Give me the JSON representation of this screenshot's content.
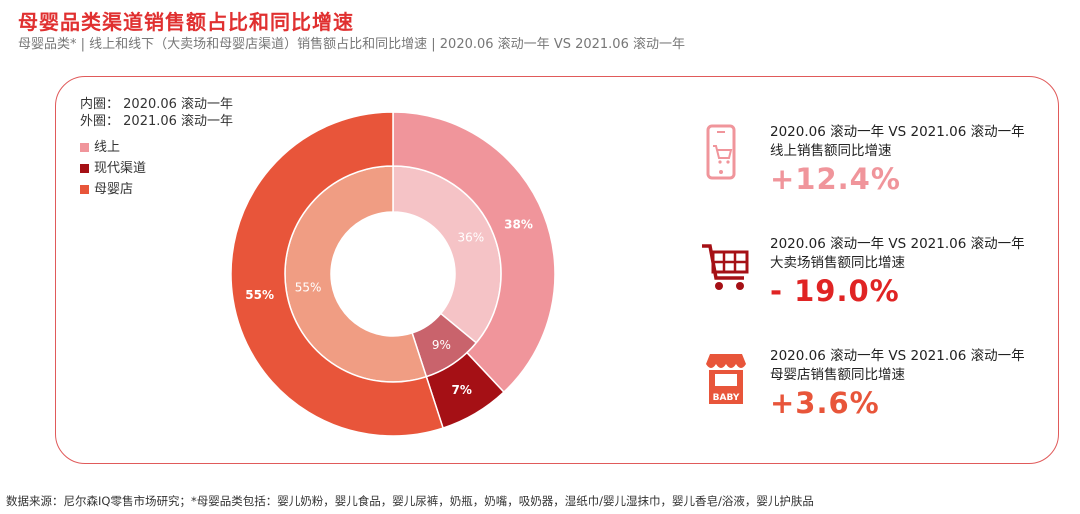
{
  "title": "母婴品类渠道销售额占比和同比增速",
  "subtitle": "母婴品类* | 线上和线下（大卖场和母婴店渠道）销售额占比和同比增速 | 2020.06 滚动一年 VS 2021.06 滚动一年",
  "legend": {
    "inner_label": "内圈：",
    "inner_value": "2020.06 滚动一年",
    "outer_label": "外圈：",
    "outer_value": "2021.06 滚动一年"
  },
  "chart_data": {
    "type": "donut",
    "categories": [
      "线上",
      "现代渠道",
      "母婴店"
    ],
    "series": [
      {
        "name": "2020.06 滚动一年",
        "ring": "inner",
        "values": [
          36,
          9,
          55
        ],
        "labels": [
          "36%",
          "9%",
          "55%"
        ]
      },
      {
        "name": "2021.06 滚动一年",
        "ring": "outer",
        "values": [
          38,
          7,
          55
        ],
        "labels": [
          "38%",
          "7%",
          "55%"
        ]
      }
    ],
    "colors": {
      "outer": [
        "#f0959b",
        "#a51015",
        "#e8553a"
      ],
      "inner": [
        "#f5c3c6",
        "#c9636c",
        "#f09d83"
      ]
    },
    "unit": "%"
  },
  "stats": [
    {
      "line1": "2020.06 滚动一年 VS 2021.06 滚动一年",
      "line2": "线上销售额同比增速",
      "value": "+12.4%",
      "color": "#f0959b",
      "icon": "mobile-cart-icon"
    },
    {
      "line1": "2020.06 滚动一年 VS 2021.06 滚动一年",
      "line2": "大卖场销售额同比增速",
      "value": "- 19.0%",
      "color": "#e02424",
      "icon": "shopping-cart-icon"
    },
    {
      "line1": "2020.06 滚动一年 VS 2021.06 滚动一年",
      "line2": "母婴店销售额同比增速",
      "value": "+3.6%",
      "color": "#e8553a",
      "icon": "baby-store-icon"
    }
  ],
  "baby_sign": "BABY",
  "footer": "数据来源：尼尔森IQ零售市场研究；*母婴品类包括：婴儿奶粉，婴儿食品，婴儿尿裤，奶瓶，奶嘴，吸奶器，湿纸巾/婴儿湿抹巾，婴儿香皂/浴液，婴儿护肤品"
}
